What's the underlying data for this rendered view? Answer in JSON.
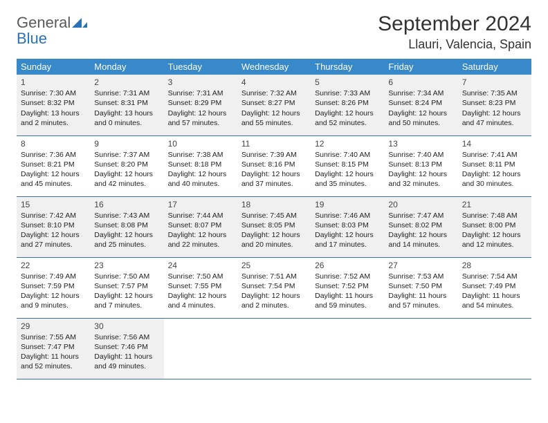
{
  "logo": {
    "word1": "General",
    "word2": "Blue"
  },
  "title": "September 2024",
  "location": "Llauri, Valencia, Spain",
  "colors": {
    "header_bg": "#3789c9",
    "header_text": "#ffffff",
    "row_divider": "#3f6fa0",
    "alt_row_bg": "#f0f0f0",
    "page_bg": "#ffffff",
    "logo_gray": "#5a5a5a",
    "logo_blue": "#2a72b5"
  },
  "typography": {
    "title_fontsize": 30,
    "location_fontsize": 18,
    "dayheader_fontsize": 13,
    "cell_fontsize": 10.5
  },
  "day_headers": [
    "Sunday",
    "Monday",
    "Tuesday",
    "Wednesday",
    "Thursday",
    "Friday",
    "Saturday"
  ],
  "weeks": [
    [
      {
        "n": "1",
        "sr": "Sunrise: 7:30 AM",
        "ss": "Sunset: 8:32 PM",
        "d1": "Daylight: 13 hours",
        "d2": "and 2 minutes."
      },
      {
        "n": "2",
        "sr": "Sunrise: 7:31 AM",
        "ss": "Sunset: 8:31 PM",
        "d1": "Daylight: 13 hours",
        "d2": "and 0 minutes."
      },
      {
        "n": "3",
        "sr": "Sunrise: 7:31 AM",
        "ss": "Sunset: 8:29 PM",
        "d1": "Daylight: 12 hours",
        "d2": "and 57 minutes."
      },
      {
        "n": "4",
        "sr": "Sunrise: 7:32 AM",
        "ss": "Sunset: 8:27 PM",
        "d1": "Daylight: 12 hours",
        "d2": "and 55 minutes."
      },
      {
        "n": "5",
        "sr": "Sunrise: 7:33 AM",
        "ss": "Sunset: 8:26 PM",
        "d1": "Daylight: 12 hours",
        "d2": "and 52 minutes."
      },
      {
        "n": "6",
        "sr": "Sunrise: 7:34 AM",
        "ss": "Sunset: 8:24 PM",
        "d1": "Daylight: 12 hours",
        "d2": "and 50 minutes."
      },
      {
        "n": "7",
        "sr": "Sunrise: 7:35 AM",
        "ss": "Sunset: 8:23 PM",
        "d1": "Daylight: 12 hours",
        "d2": "and 47 minutes."
      }
    ],
    [
      {
        "n": "8",
        "sr": "Sunrise: 7:36 AM",
        "ss": "Sunset: 8:21 PM",
        "d1": "Daylight: 12 hours",
        "d2": "and 45 minutes."
      },
      {
        "n": "9",
        "sr": "Sunrise: 7:37 AM",
        "ss": "Sunset: 8:20 PM",
        "d1": "Daylight: 12 hours",
        "d2": "and 42 minutes."
      },
      {
        "n": "10",
        "sr": "Sunrise: 7:38 AM",
        "ss": "Sunset: 8:18 PM",
        "d1": "Daylight: 12 hours",
        "d2": "and 40 minutes."
      },
      {
        "n": "11",
        "sr": "Sunrise: 7:39 AM",
        "ss": "Sunset: 8:16 PM",
        "d1": "Daylight: 12 hours",
        "d2": "and 37 minutes."
      },
      {
        "n": "12",
        "sr": "Sunrise: 7:40 AM",
        "ss": "Sunset: 8:15 PM",
        "d1": "Daylight: 12 hours",
        "d2": "and 35 minutes."
      },
      {
        "n": "13",
        "sr": "Sunrise: 7:40 AM",
        "ss": "Sunset: 8:13 PM",
        "d1": "Daylight: 12 hours",
        "d2": "and 32 minutes."
      },
      {
        "n": "14",
        "sr": "Sunrise: 7:41 AM",
        "ss": "Sunset: 8:11 PM",
        "d1": "Daylight: 12 hours",
        "d2": "and 30 minutes."
      }
    ],
    [
      {
        "n": "15",
        "sr": "Sunrise: 7:42 AM",
        "ss": "Sunset: 8:10 PM",
        "d1": "Daylight: 12 hours",
        "d2": "and 27 minutes."
      },
      {
        "n": "16",
        "sr": "Sunrise: 7:43 AM",
        "ss": "Sunset: 8:08 PM",
        "d1": "Daylight: 12 hours",
        "d2": "and 25 minutes."
      },
      {
        "n": "17",
        "sr": "Sunrise: 7:44 AM",
        "ss": "Sunset: 8:07 PM",
        "d1": "Daylight: 12 hours",
        "d2": "and 22 minutes."
      },
      {
        "n": "18",
        "sr": "Sunrise: 7:45 AM",
        "ss": "Sunset: 8:05 PM",
        "d1": "Daylight: 12 hours",
        "d2": "and 20 minutes."
      },
      {
        "n": "19",
        "sr": "Sunrise: 7:46 AM",
        "ss": "Sunset: 8:03 PM",
        "d1": "Daylight: 12 hours",
        "d2": "and 17 minutes."
      },
      {
        "n": "20",
        "sr": "Sunrise: 7:47 AM",
        "ss": "Sunset: 8:02 PM",
        "d1": "Daylight: 12 hours",
        "d2": "and 14 minutes."
      },
      {
        "n": "21",
        "sr": "Sunrise: 7:48 AM",
        "ss": "Sunset: 8:00 PM",
        "d1": "Daylight: 12 hours",
        "d2": "and 12 minutes."
      }
    ],
    [
      {
        "n": "22",
        "sr": "Sunrise: 7:49 AM",
        "ss": "Sunset: 7:59 PM",
        "d1": "Daylight: 12 hours",
        "d2": "and 9 minutes."
      },
      {
        "n": "23",
        "sr": "Sunrise: 7:50 AM",
        "ss": "Sunset: 7:57 PM",
        "d1": "Daylight: 12 hours",
        "d2": "and 7 minutes."
      },
      {
        "n": "24",
        "sr": "Sunrise: 7:50 AM",
        "ss": "Sunset: 7:55 PM",
        "d1": "Daylight: 12 hours",
        "d2": "and 4 minutes."
      },
      {
        "n": "25",
        "sr": "Sunrise: 7:51 AM",
        "ss": "Sunset: 7:54 PM",
        "d1": "Daylight: 12 hours",
        "d2": "and 2 minutes."
      },
      {
        "n": "26",
        "sr": "Sunrise: 7:52 AM",
        "ss": "Sunset: 7:52 PM",
        "d1": "Daylight: 11 hours",
        "d2": "and 59 minutes."
      },
      {
        "n": "27",
        "sr": "Sunrise: 7:53 AM",
        "ss": "Sunset: 7:50 PM",
        "d1": "Daylight: 11 hours",
        "d2": "and 57 minutes."
      },
      {
        "n": "28",
        "sr": "Sunrise: 7:54 AM",
        "ss": "Sunset: 7:49 PM",
        "d1": "Daylight: 11 hours",
        "d2": "and 54 minutes."
      }
    ],
    [
      {
        "n": "29",
        "sr": "Sunrise: 7:55 AM",
        "ss": "Sunset: 7:47 PM",
        "d1": "Daylight: 11 hours",
        "d2": "and 52 minutes."
      },
      {
        "n": "30",
        "sr": "Sunrise: 7:56 AM",
        "ss": "Sunset: 7:46 PM",
        "d1": "Daylight: 11 hours",
        "d2": "and 49 minutes."
      },
      null,
      null,
      null,
      null,
      null
    ]
  ]
}
